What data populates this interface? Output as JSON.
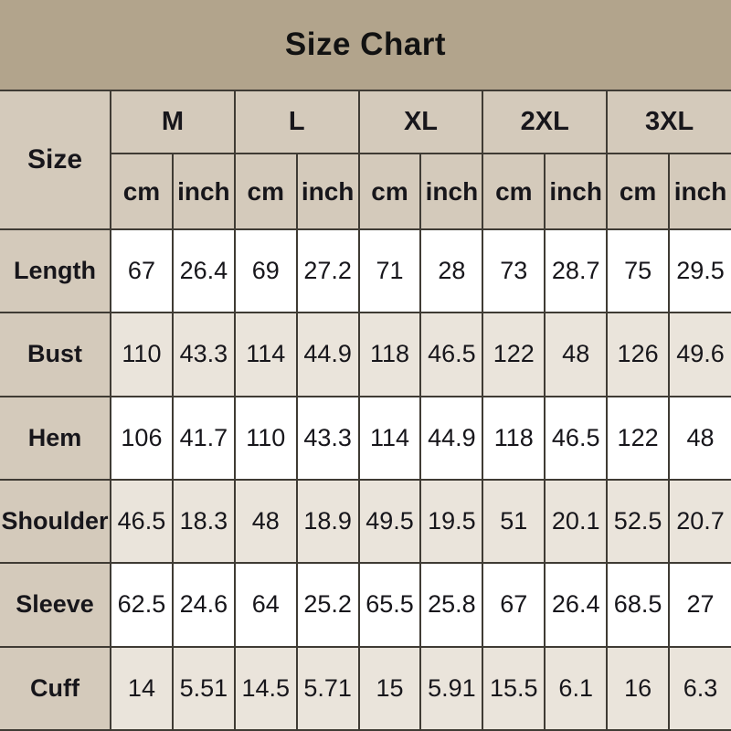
{
  "title": "Size Chart",
  "colors": {
    "title_band": "#b2a48c",
    "header_cell": "#d4cabb",
    "row_tint": "#eae4db",
    "row_white": "#ffffff",
    "border": "#3f3b34",
    "text": "#17161b"
  },
  "chart_data": {
    "type": "table",
    "title": "Size Chart",
    "corner_label": "Size",
    "size_groups": [
      "M",
      "L",
      "XL",
      "2XL",
      "3XL"
    ],
    "unit_labels": [
      "cm",
      "inch"
    ],
    "rows": [
      {
        "label": "Length",
        "values": [
          67,
          26.4,
          69,
          27.2,
          71,
          28,
          73,
          28.7,
          75,
          29.5
        ]
      },
      {
        "label": "Bust",
        "values": [
          110,
          43.3,
          114,
          44.9,
          118,
          46.5,
          122,
          48,
          126,
          49.6
        ]
      },
      {
        "label": "Hem",
        "values": [
          106,
          41.7,
          110,
          43.3,
          114,
          44.9,
          118,
          46.5,
          122,
          48
        ]
      },
      {
        "label": "Shoulder",
        "values": [
          46.5,
          18.3,
          48,
          18.9,
          49.5,
          19.5,
          51,
          20.1,
          52.5,
          20.7
        ]
      },
      {
        "label": "Sleeve",
        "values": [
          62.5,
          24.6,
          64,
          25.2,
          65.5,
          25.8,
          67,
          26.4,
          68.5,
          27
        ]
      },
      {
        "label": "Cuff",
        "values": [
          14,
          5.51,
          14.5,
          5.71,
          15,
          5.91,
          15.5,
          6.1,
          16,
          6.3
        ]
      }
    ]
  }
}
